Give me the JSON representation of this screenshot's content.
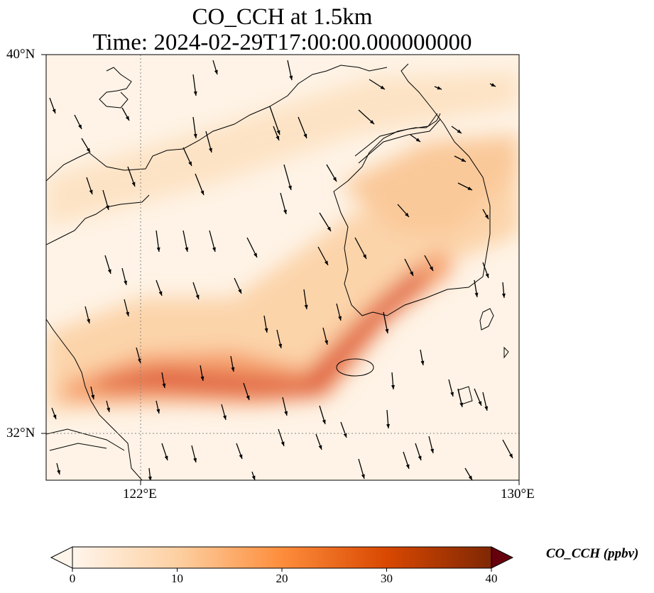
{
  "title": {
    "line1": "CO_CCH at 1.5km",
    "line2": "Time: 2024-02-29T17:00:00.000000000"
  },
  "axes": {
    "lat_ticks": [
      "40°N",
      "32°N"
    ],
    "lon_ticks": [
      "122°E",
      "130°E"
    ]
  },
  "colorbar": {
    "label": "CO_CCH (ppbv)",
    "ticks": [
      "0",
      "10",
      "20",
      "30",
      "40"
    ],
    "range": [
      0,
      40
    ],
    "colormap": [
      "#fff5eb",
      "#fdd0a2",
      "#fd8d3c",
      "#d94801",
      "#7f2704"
    ]
  },
  "chart_data": {
    "type": "heatmap",
    "title": "CO_CCH at 1.5km",
    "subtitle": "Time: 2024-02-29T17:00:00.000000000",
    "variable": "CO_CCH",
    "units": "ppbv",
    "extent_lon": [
      120,
      130
    ],
    "extent_lat": [
      31,
      40
    ],
    "gridlines": {
      "lon": [
        122
      ],
      "lat": [
        32
      ]
    },
    "value_range": [
      0,
      40
    ],
    "features": [
      {
        "name": "main plume band",
        "path_lon": [
          121.0,
          123.0,
          124.5,
          126.0,
          127.0
        ],
        "path_lat": [
          33.0,
          32.8,
          32.8,
          34.0,
          35.0
        ],
        "peak_ppbv": 24
      },
      {
        "name": "northern plume band",
        "path_lon": [
          126.0,
          128.0,
          130.0
        ],
        "path_lat": [
          37.0,
          38.0,
          36.8
        ],
        "peak_ppbv": 12
      }
    ],
    "wind_vectors": "southward to south-southeast flow over the domain"
  }
}
